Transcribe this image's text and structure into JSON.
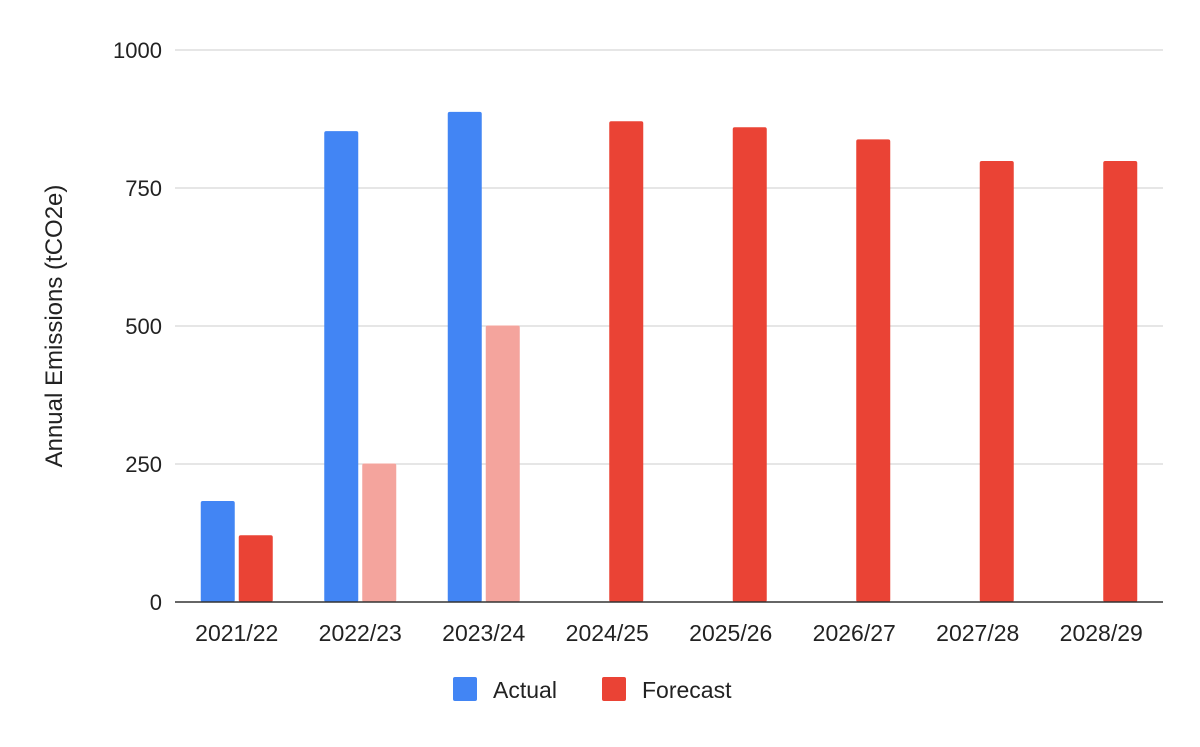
{
  "chart_data": {
    "type": "bar",
    "title": "",
    "xlabel": "",
    "ylabel": "Annual Emissions (tCO2e)",
    "ylim": [
      0,
      1000
    ],
    "yticks": [
      0,
      250,
      500,
      750,
      1000
    ],
    "grid": true,
    "legend_position": "bottom",
    "categories": [
      "2021/22",
      "2022/23",
      "2023/24",
      "2024/25",
      "2025/26",
      "2026/27",
      "2027/28",
      "2028/29"
    ],
    "series": [
      {
        "name": "Actual",
        "color": "#4285f4",
        "values": [
          183,
          853,
          888,
          null,
          null,
          null,
          null,
          null
        ]
      },
      {
        "name": "Forecast",
        "color": "#ea4335",
        "values": [
          121,
          251,
          501,
          871,
          860,
          838,
          799,
          799
        ],
        "point_colors": [
          "#ea4335",
          "#f4a49d",
          "#f4a49d",
          "#ea4335",
          "#ea4335",
          "#ea4335",
          "#ea4335",
          "#ea4335"
        ]
      }
    ]
  }
}
